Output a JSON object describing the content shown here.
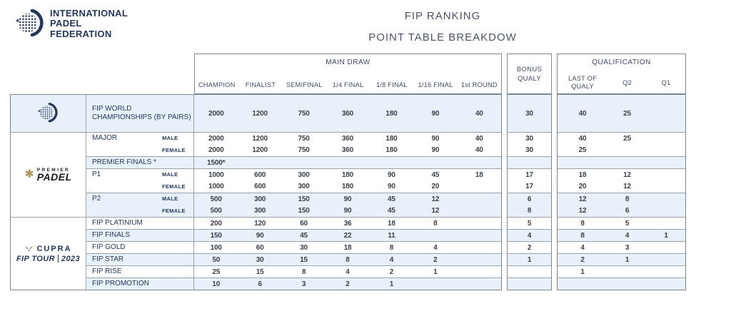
{
  "header": {
    "brand": {
      "line1": "INTERNATIONAL",
      "line2": "PADEL",
      "line3": "FEDERATION"
    },
    "title1": "FIP RANKING",
    "title2": "POINT TABLE BREAKDOW"
  },
  "table": {
    "group_main": "MAIN DRAW",
    "bonus_label": "BONUS QUALY",
    "group_qual": "QUALIFICATION",
    "main_columns": [
      "CHAMPION",
      "FINALIST",
      "SEMIFINAL",
      "1/4 FINAL",
      "1/8 FINAL",
      "1/16 FINAL",
      "1st ROUND"
    ],
    "qual_columns": [
      "LAST OF QUALY",
      "Q2",
      "Q1"
    ],
    "rows": [
      {
        "label": "FIP WORLD CHAMPIONSHIPS (BY PAIRS)",
        "gender": "",
        "main": [
          "2000",
          "1200",
          "750",
          "360",
          "180",
          "90",
          "40"
        ],
        "bonus": "30",
        "qual": [
          "40",
          "25",
          ""
        ],
        "shade": true,
        "divider": false,
        "tall": true
      },
      {
        "label": "MAJOR",
        "gender": "MALE",
        "main": [
          "2000",
          "1200",
          "750",
          "360",
          "180",
          "90",
          "40"
        ],
        "bonus": "30",
        "qual": [
          "40",
          "25",
          ""
        ],
        "shade": false,
        "divider": true,
        "tall": false
      },
      {
        "label": "",
        "gender": "FEMALE",
        "main": [
          "2000",
          "1200",
          "750",
          "360",
          "180",
          "90",
          "40"
        ],
        "bonus": "30",
        "qual": [
          "25",
          "",
          ""
        ],
        "shade": false,
        "divider": false,
        "tall": false
      },
      {
        "label": "PREMIER FINALS *",
        "gender": "",
        "main": [
          "1500*",
          "",
          "",
          "",
          "",
          "",
          ""
        ],
        "bonus": "",
        "qual": [
          "",
          "",
          ""
        ],
        "shade": true,
        "divider": true,
        "tall": false
      },
      {
        "label": "P1",
        "gender": "MALE",
        "main": [
          "1000",
          "600",
          "300",
          "180",
          "90",
          "45",
          "18"
        ],
        "bonus": "17",
        "qual": [
          "18",
          "12",
          ""
        ],
        "shade": false,
        "divider": true,
        "tall": false
      },
      {
        "label": "",
        "gender": "FEMALE",
        "main": [
          "1000",
          "600",
          "300",
          "180",
          "90",
          "20",
          ""
        ],
        "bonus": "17",
        "qual": [
          "20",
          "12",
          ""
        ],
        "shade": false,
        "divider": false,
        "tall": false
      },
      {
        "label": "P2",
        "gender": "MALE",
        "main": [
          "500",
          "300",
          "150",
          "90",
          "45",
          "12",
          ""
        ],
        "bonus": "6",
        "qual": [
          "12",
          "8",
          ""
        ],
        "shade": true,
        "divider": true,
        "tall": false
      },
      {
        "label": "",
        "gender": "FEMALE",
        "main": [
          "500",
          "300",
          "150",
          "90",
          "45",
          "12",
          ""
        ],
        "bonus": "8",
        "qual": [
          "12",
          "6",
          ""
        ],
        "shade": true,
        "divider": false,
        "tall": false
      },
      {
        "label": "FIP PLATINIUM",
        "gender": "",
        "main": [
          "200",
          "120",
          "60",
          "36",
          "18",
          "8",
          ""
        ],
        "bonus": "5",
        "qual": [
          "8",
          "5",
          ""
        ],
        "shade": false,
        "divider": true,
        "tall": false
      },
      {
        "label": "FIP FINALS",
        "gender": "",
        "main": [
          "150",
          "90",
          "45",
          "22",
          "11",
          "",
          ""
        ],
        "bonus": "4",
        "qual": [
          "8",
          "4",
          "1"
        ],
        "shade": true,
        "divider": true,
        "tall": false
      },
      {
        "label": "FIP GOLD",
        "gender": "",
        "main": [
          "100",
          "60",
          "30",
          "18",
          "8",
          "4",
          ""
        ],
        "bonus": "2",
        "qual": [
          "4",
          "3",
          ""
        ],
        "shade": false,
        "divider": true,
        "tall": false
      },
      {
        "label": "FIP STAR",
        "gender": "",
        "main": [
          "50",
          "30",
          "15",
          "8",
          "4",
          "2",
          ""
        ],
        "bonus": "1",
        "qual": [
          "2",
          "1",
          ""
        ],
        "shade": true,
        "divider": true,
        "tall": false
      },
      {
        "label": "FIP RISE",
        "gender": "",
        "main": [
          "25",
          "15",
          "8",
          "4",
          "2",
          "1",
          ""
        ],
        "bonus": "",
        "qual": [
          "1",
          "",
          ""
        ],
        "shade": false,
        "divider": true,
        "tall": false
      },
      {
        "label": "FIP PROMOTION",
        "gender": "",
        "main": [
          "10",
          "6",
          "3",
          "2",
          "1",
          "",
          ""
        ],
        "bonus": "",
        "qual": [
          "",
          "",
          ""
        ],
        "shade": true,
        "divider": true,
        "tall": false
      }
    ]
  },
  "side_logos": {
    "premier": {
      "eyebrow": "PREMIER",
      "name": "PADEL"
    },
    "cupra": {
      "name": "CUPRA",
      "tour": "FIP TOUR",
      "year": "2023"
    }
  },
  "colors": {
    "navy": "#22365e",
    "title": "#4a5468",
    "header_text": "#3d4a66",
    "number": "#3a3f46",
    "row_highlight": "#e8f1f9",
    "border_outer": "#7d8790",
    "border_inner": "#9aa2aa",
    "premier_gold": "#b1975b",
    "padel_black": "#1c1c1c"
  }
}
